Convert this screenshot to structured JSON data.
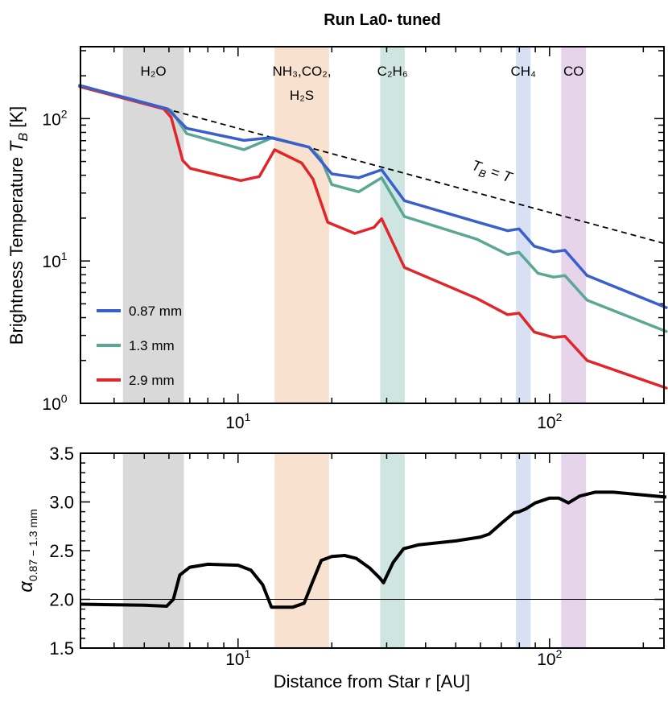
{
  "title": "Run La0- tuned",
  "colors": {
    "blue": "#3a5fcd",
    "green": "#5aa894",
    "red": "#e0262a",
    "dashed": "#000000",
    "alpha": "#000000"
  },
  "bands": [
    {
      "label": "H₂O",
      "label2": "",
      "r": [
        4.27,
        6.7
      ],
      "color": "#d9d9d9"
    },
    {
      "label": "NH₃,CO₂,",
      "label2": "H₂S",
      "r": [
        13.1,
        19.6
      ],
      "color": "#f8e2cf"
    },
    {
      "label": "C₂H₆",
      "label2": "",
      "r": [
        28.6,
        34.3
      ],
      "color": "#cfe5e1"
    },
    {
      "label": "CH₄",
      "label2": "",
      "r": [
        78,
        87
      ],
      "color": "#d8e0f4"
    },
    {
      "label": "CO",
      "label2": "",
      "r": [
        109,
        131
      ],
      "color": "#e5d4ea"
    }
  ],
  "chart_data": [
    {
      "type": "line",
      "xlabel": "Distance from Star  r [AU]",
      "ylabel_text": "Brightness Temperature",
      "ylabel_symbol": "T",
      "ylabel_sub": "B",
      "ylabel_unit": "[K]",
      "xscale": "log",
      "yscale": "log",
      "xlim": [
        3.12,
        233
      ],
      "ylim": [
        1,
        320
      ],
      "x_ticks": [
        {
          "v": 10,
          "base": "10",
          "exp": "1"
        },
        {
          "v": 100,
          "base": "10",
          "exp": "2"
        }
      ],
      "y_ticks": [
        {
          "v": 1,
          "base": "10",
          "exp": "0"
        },
        {
          "v": 10,
          "base": "10",
          "exp": "1"
        },
        {
          "v": 100,
          "base": "10",
          "exp": "2"
        }
      ],
      "legend": "bottom-left",
      "annotation": {
        "symbol": "T",
        "sub": "B",
        "rest": " = T"
      },
      "reference_line": {
        "name": "T_B = T",
        "style": "dashed",
        "points": [
          [
            3.12,
            170
          ],
          [
            233,
            13.3
          ]
        ]
      },
      "series": [
        {
          "name": "0.87 mm",
          "color": "#3a5fcd",
          "points": [
            [
              3.1,
              171
            ],
            [
              5.94,
              117
            ],
            [
              6.84,
              85.5
            ],
            [
              10.45,
              70.3
            ],
            [
              12.7,
              73.5
            ],
            [
              16.9,
              63
            ],
            [
              20.0,
              40.9
            ],
            [
              24.4,
              38.4
            ],
            [
              28.9,
              43.7
            ],
            [
              34.2,
              26.5
            ],
            [
              58.5,
              18.8
            ],
            [
              73.3,
              16.3
            ],
            [
              79.8,
              16.8
            ],
            [
              89.3,
              12.7
            ],
            [
              103,
              11.6
            ],
            [
              112,
              11.9
            ],
            [
              132,
              7.9
            ],
            [
              237,
              4.7
            ]
          ]
        },
        {
          "name": "1.3 mm",
          "color": "#5aa894",
          "points": [
            [
              3.1,
              171
            ],
            [
              5.94,
              117
            ],
            [
              6.1,
              114
            ],
            [
              6.84,
              78.4
            ],
            [
              10.45,
              60.5
            ],
            [
              12.9,
              73.5
            ],
            [
              16.9,
              63
            ],
            [
              18.4,
              53
            ],
            [
              20.0,
              34.4
            ],
            [
              24.4,
              30.6
            ],
            [
              28.9,
              38.4
            ],
            [
              34.2,
              20.5
            ],
            [
              58.5,
              14.2
            ],
            [
              73.3,
              11.1
            ],
            [
              79.8,
              11.5
            ],
            [
              91.8,
              8.2
            ],
            [
              103,
              7.7
            ],
            [
              112,
              7.9
            ],
            [
              132,
              5.3
            ],
            [
              237,
              3.2
            ]
          ]
        },
        {
          "name": "2.9 mm",
          "color": "#e0262a",
          "points": [
            [
              3.1,
              168
            ],
            [
              5.78,
              117
            ],
            [
              6.1,
              102
            ],
            [
              6.64,
              50.8
            ],
            [
              7.03,
              44.7
            ],
            [
              10.2,
              36.7
            ],
            [
              11.7,
              39.2
            ],
            [
              13.1,
              60.4
            ],
            [
              16.0,
              48.8
            ],
            [
              17.4,
              37.6
            ],
            [
              19.4,
              18.7
            ],
            [
              23.7,
              15.6
            ],
            [
              27.3,
              17.2
            ],
            [
              28.9,
              19.8
            ],
            [
              34.2,
              9.0
            ],
            [
              58.5,
              5.45
            ],
            [
              73.3,
              4.2
            ],
            [
              79.8,
              4.3
            ],
            [
              89.3,
              3.17
            ],
            [
              103,
              2.9
            ],
            [
              112,
              2.96
            ],
            [
              132,
              2.0
            ],
            [
              237,
              1.28
            ]
          ]
        }
      ]
    },
    {
      "type": "line",
      "xlabel": "Distance from Star  r [AU]",
      "ylabel_symbol": "α",
      "ylabel_sub": "0.87 − 1.3 mm",
      "xscale": "log",
      "xlim": [
        3.12,
        233
      ],
      "ylim": [
        1.5,
        3.5
      ],
      "x_ticks": [
        {
          "v": 10,
          "base": "10",
          "exp": "1"
        },
        {
          "v": 100,
          "base": "10",
          "exp": "2"
        }
      ],
      "y_ticks": [
        {
          "v": 1.5,
          "label": "1.5"
        },
        {
          "v": 2.0,
          "label": "2.0"
        },
        {
          "v": 2.5,
          "label": "2.5"
        },
        {
          "v": 3.0,
          "label": "3.0"
        },
        {
          "v": 3.5,
          "label": "3.5"
        }
      ],
      "reference_line": {
        "y": 2.0
      },
      "series": [
        {
          "color": "#000000",
          "points": [
            [
              3.12,
              1.95
            ],
            [
              5.0,
              1.94
            ],
            [
              5.9,
              1.93
            ],
            [
              6.2,
              2.0
            ],
            [
              6.5,
              2.25
            ],
            [
              7.0,
              2.33
            ],
            [
              8.0,
              2.36
            ],
            [
              10,
              2.35
            ],
            [
              11,
              2.3
            ],
            [
              12,
              2.15
            ],
            [
              12.8,
              1.92
            ],
            [
              15,
              1.92
            ],
            [
              16.3,
              1.96
            ],
            [
              17.2,
              2.15
            ],
            [
              18.5,
              2.4
            ],
            [
              20,
              2.44
            ],
            [
              22,
              2.45
            ],
            [
              24,
              2.42
            ],
            [
              26.5,
              2.32
            ],
            [
              28.5,
              2.22
            ],
            [
              29.3,
              2.17
            ],
            [
              31.5,
              2.38
            ],
            [
              34,
              2.52
            ],
            [
              38,
              2.56
            ],
            [
              50,
              2.6
            ],
            [
              60,
              2.64
            ],
            [
              64,
              2.67
            ],
            [
              70,
              2.78
            ],
            [
              77,
              2.89
            ],
            [
              80,
              2.9
            ],
            [
              84,
              2.93
            ],
            [
              90,
              2.99
            ],
            [
              100,
              3.04
            ],
            [
              107,
              3.04
            ],
            [
              115,
              2.99
            ],
            [
              125,
              3.06
            ],
            [
              140,
              3.1
            ],
            [
              160,
              3.1
            ],
            [
              237,
              3.05
            ]
          ]
        }
      ]
    }
  ]
}
